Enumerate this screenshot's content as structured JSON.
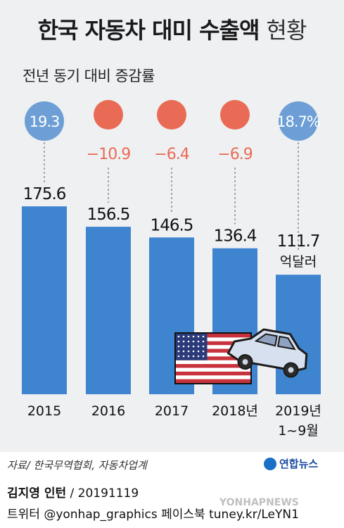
{
  "title_main": "한국 자동차 대미 수출액",
  "title_suffix": "현황",
  "subtitle": "전년 동기 대비 증감률",
  "colors": {
    "bar": "#3f84cf",
    "positive": "#6d9fd6",
    "negative": "#ea6b55",
    "panel": "#eef0f2"
  },
  "chart_data": {
    "type": "bar",
    "categories": [
      "2015",
      "2016",
      "2017",
      "2018년",
      "2019년"
    ],
    "category_sublabels": [
      "",
      "",
      "",
      "",
      "1~9월"
    ],
    "values": [
      175.6,
      156.5,
      146.5,
      136.4,
      111.7
    ],
    "value_unit_label": "억달러",
    "change_rates": [
      19.3,
      -10.9,
      -6.4,
      -6.9,
      18.7
    ],
    "change_labels": [
      "19.3",
      "−10.9",
      "−6.4",
      "−6.9",
      "18.7%"
    ],
    "ylim": [
      0,
      200
    ]
  },
  "footer": {
    "source": "자료/ 한국무역협회, 자동차업계",
    "logo": "연합뉴스",
    "credit_name": "김지영 인턴",
    "credit_date": "/ 20191119",
    "social": "트위터 @yonhap_graphics  페이스북 tuney.kr/LeYN1",
    "watermark": "YONHAPNEWS"
  },
  "illustration": {
    "flag": "us-flag-icon",
    "car": "car-icon"
  }
}
